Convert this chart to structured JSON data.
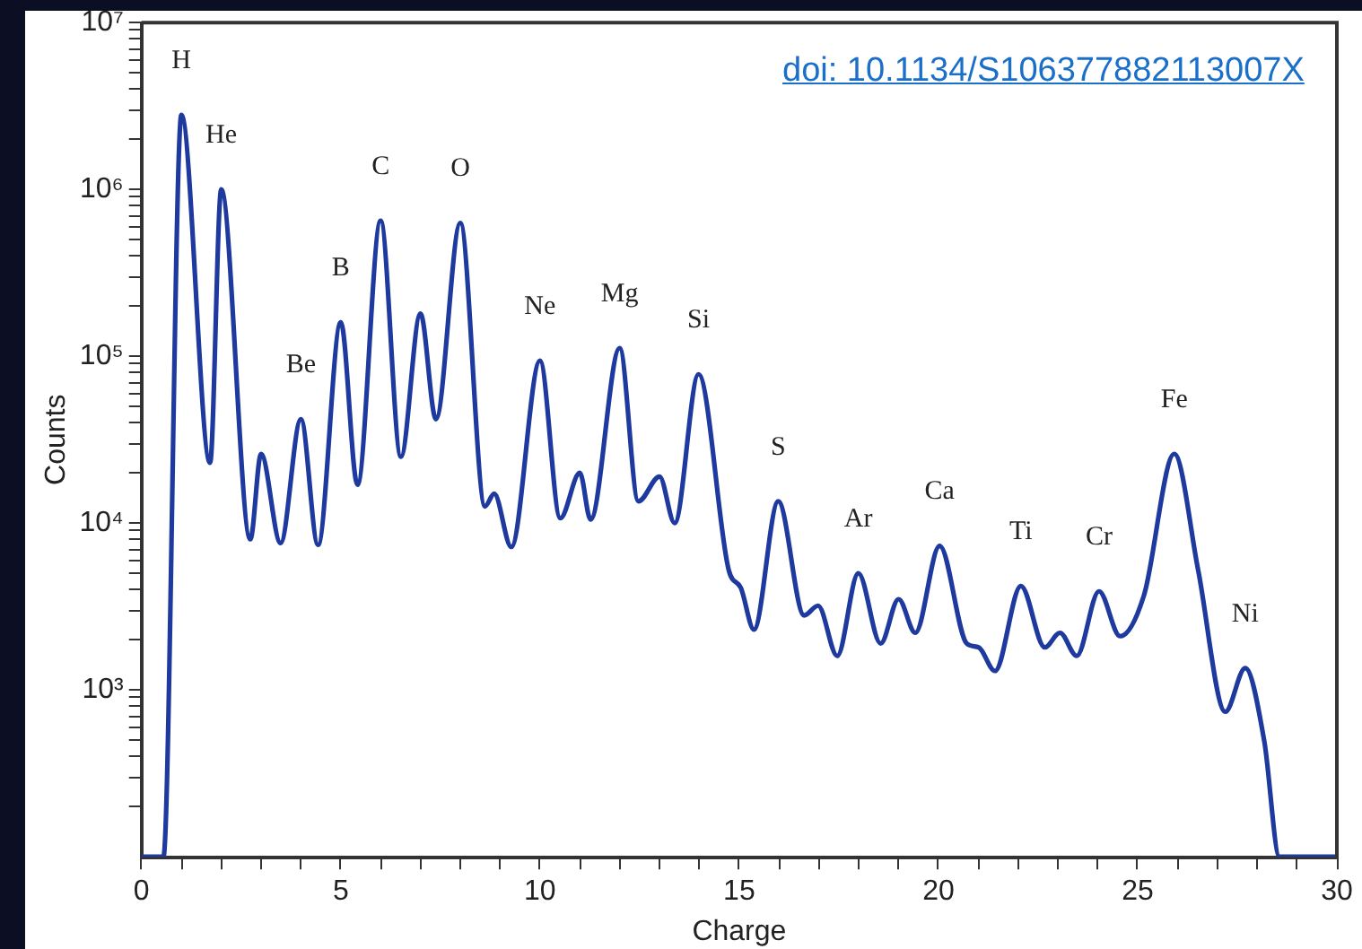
{
  "chart_data": {
    "type": "line",
    "xlabel": "Charge",
    "ylabel": "Counts",
    "log": "y",
    "grid": false,
    "legend": false,
    "marker": "none",
    "line_style": "solid",
    "xlim": [
      0,
      30
    ],
    "ylim": [
      100,
      10000000
    ],
    "xticks": [
      0,
      {
        "value": 1,
        "label": null
      },
      {
        "value": 2,
        "label": null
      },
      {
        "value": 3,
        "label": null
      },
      {
        "value": 4,
        "label": null
      },
      5,
      {
        "value": 6,
        "label": null
      },
      {
        "value": 7,
        "label": null
      },
      {
        "value": 8,
        "label": null
      },
      {
        "value": 9,
        "label": null
      },
      10,
      {
        "value": 11,
        "label": null
      },
      {
        "value": 12,
        "label": null
      },
      {
        "value": 13,
        "label": null
      },
      {
        "value": 14,
        "label": null
      },
      15,
      {
        "value": 16,
        "label": null
      },
      {
        "value": 17,
        "label": null
      },
      {
        "value": 18,
        "label": null
      },
      {
        "value": 19,
        "label": null
      },
      20,
      {
        "value": 21,
        "label": null
      },
      {
        "value": 22,
        "label": null
      },
      {
        "value": 23,
        "label": null
      },
      {
        "value": 24,
        "label": null
      },
      25,
      {
        "value": 26,
        "label": null
      },
      {
        "value": 27,
        "label": null
      },
      {
        "value": 28,
        "label": null
      },
      {
        "value": 29,
        "label": null
      },
      30
    ],
    "yticks": [
      {
        "value": 200,
        "label": null
      },
      {
        "value": 300,
        "label": null
      },
      {
        "value": 400,
        "label": null
      },
      {
        "value": 500,
        "label": null
      },
      {
        "value": 600,
        "label": null
      },
      {
        "value": 700,
        "label": null
      },
      {
        "value": 800,
        "label": null
      },
      {
        "value": 900,
        "label": null
      },
      {
        "value": 1000,
        "label": "10³"
      },
      {
        "value": 2000,
        "label": null
      },
      {
        "value": 3000,
        "label": null
      },
      {
        "value": 4000,
        "label": null
      },
      {
        "value": 5000,
        "label": null
      },
      {
        "value": 6000,
        "label": null
      },
      {
        "value": 7000,
        "label": null
      },
      {
        "value": 8000,
        "label": null
      },
      {
        "value": 9000,
        "label": null
      },
      {
        "value": 10000,
        "label": "10⁴"
      },
      {
        "value": 20000,
        "label": null
      },
      {
        "value": 30000,
        "label": null
      },
      {
        "value": 40000,
        "label": null
      },
      {
        "value": 50000,
        "label": null
      },
      {
        "value": 60000,
        "label": null
      },
      {
        "value": 70000,
        "label": null
      },
      {
        "value": 80000,
        "label": null
      },
      {
        "value": 90000,
        "label": null
      },
      {
        "value": 100000,
        "label": "10⁵"
      },
      {
        "value": 200000,
        "label": null
      },
      {
        "value": 300000,
        "label": null
      },
      {
        "value": 400000,
        "label": null
      },
      {
        "value": 500000,
        "label": null
      },
      {
        "value": 600000,
        "label": null
      },
      {
        "value": 700000,
        "label": null
      },
      {
        "value": 800000,
        "label": null
      },
      {
        "value": 900000,
        "label": null
      },
      {
        "value": 1000000,
        "label": "10⁶"
      },
      {
        "value": 2000000,
        "label": null
      },
      {
        "value": 3000000,
        "label": null
      },
      {
        "value": 4000000,
        "label": null
      },
      {
        "value": 5000000,
        "label": null
      },
      {
        "value": 6000000,
        "label": null
      },
      {
        "value": 7000000,
        "label": null
      },
      {
        "value": 8000000,
        "label": null
      },
      {
        "value": 9000000,
        "label": null
      },
      {
        "value": 10000000,
        "label": "10⁷"
      }
    ],
    "series": [
      {
        "color": "#1f3a9e",
        "x": [
          0,
          0.55,
          1.0,
          1.72,
          2.0,
          2.73,
          3.0,
          3.49,
          4.0,
          4.43,
          5.0,
          5.42,
          6.0,
          6.51,
          7.0,
          7.39,
          8.0,
          8.62,
          8.85,
          9.28,
          10.0,
          10.51,
          11.0,
          11.27,
          12.0,
          12.47,
          13.0,
          13.38,
          13.98,
          14.74,
          15.04,
          15.37,
          15.98,
          16.63,
          16.98,
          17.46,
          17.99,
          18.55,
          19.0,
          19.42,
          20.03,
          20.71,
          21.01,
          21.42,
          22.07,
          22.67,
          23.05,
          23.47,
          24.03,
          24.56,
          25.16,
          25.92,
          26.52,
          27.2,
          27.7,
          28.18,
          28.56,
          30
        ],
        "values": [
          100,
          100,
          2800000,
          23000,
          1000000,
          8000,
          26000,
          7600,
          42000,
          7400,
          160000,
          17000,
          650000,
          25000,
          180000,
          42000,
          630000,
          12600,
          15000,
          7200,
          94000,
          10700,
          20000,
          10500,
          112000,
          13500,
          19000,
          10000,
          78000,
          5200,
          4100,
          2300,
          13500,
          2800,
          3200,
          1600,
          5000,
          1900,
          3500,
          2200,
          7300,
          1900,
          1800,
          1300,
          4200,
          1800,
          2200,
          1600,
          3900,
          2100,
          3700,
          26000,
          5200,
          740,
          1350,
          490,
          100,
          100
        ]
      }
    ],
    "annotations": [
      "doi: 10.1134/S106377882113007X",
      {
        "text": "H",
        "x": 1.0,
        "y": 2800000
      },
      {
        "text": "He",
        "x": 2.0,
        "y": 1000000
      },
      {
        "text": "Be",
        "x": 4.0,
        "y": 42000
      },
      {
        "text": "B",
        "x": 5.0,
        "y": 160000
      },
      {
        "text": "C",
        "x": 6.0,
        "y": 650000
      },
      {
        "text": "O",
        "x": 8.0,
        "y": 630000
      },
      {
        "text": "Ne",
        "x": 10.0,
        "y": 94000
      },
      {
        "text": "Mg",
        "x": 12.0,
        "y": 112000
      },
      {
        "text": "Si",
        "x": 13.98,
        "y": 78000
      },
      {
        "text": "S",
        "x": 15.98,
        "y": 13500
      },
      {
        "text": "Ar",
        "x": 17.99,
        "y": 5000
      },
      {
        "text": "Ca",
        "x": 20.03,
        "y": 7300
      },
      {
        "text": "Ti",
        "x": 22.07,
        "y": 4200
      },
      {
        "text": "Cr",
        "x": 24.03,
        "y": 3900
      },
      {
        "text": "Fe",
        "x": 25.92,
        "y": 26000
      },
      {
        "text": "Ni",
        "x": 27.7,
        "y": 1350
      }
    ]
  }
}
